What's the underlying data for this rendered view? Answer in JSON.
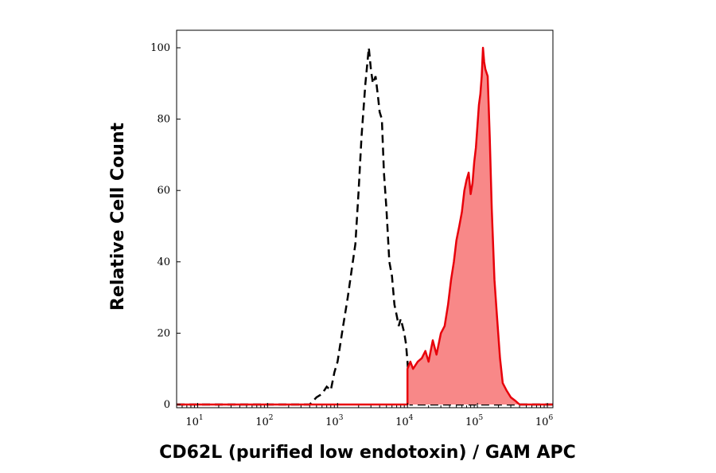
{
  "chart_data": {
    "type": "area",
    "title": "",
    "xlabel": "CD62L (purified low endotoxin) / GAM APC",
    "ylabel": "Relative Cell Count",
    "x_scale": "log",
    "xlim": [
      5,
      1200000
    ],
    "ylim": [
      0,
      100
    ],
    "x_ticks": [
      {
        "base": "10",
        "exp": "1",
        "value": 10
      },
      {
        "base": "10",
        "exp": "2",
        "value": 100
      },
      {
        "base": "10",
        "exp": "3",
        "value": 1000
      },
      {
        "base": "10",
        "exp": "4",
        "value": 10000
      },
      {
        "base": "10",
        "exp": "5",
        "value": 100000
      },
      {
        "base": "10",
        "exp": "6",
        "value": 1000000
      }
    ],
    "y_ticks": [
      0,
      20,
      40,
      60,
      80,
      100
    ],
    "grid": false,
    "colors": {
      "control_line": "#000000",
      "stained_line": "#e8000a",
      "stained_fill": "#f88888"
    },
    "series": [
      {
        "style": "dashed-outline",
        "x": [
          5,
          400,
          500,
          600,
          700,
          800,
          900,
          1000,
          1200,
          1400,
          1600,
          1800,
          2000,
          2200,
          2500,
          2800,
          3000,
          3200,
          3500,
          3800,
          4000,
          4300,
          4600,
          5000,
          5500,
          6000,
          6500,
          7000,
          7500,
          8000,
          8500,
          9000,
          9500,
          10000,
          10500,
          11000,
          1200000
        ],
        "y": [
          0,
          0,
          2,
          3,
          5,
          4,
          9,
          12,
          22,
          30,
          38,
          45,
          60,
          75,
          90,
          100,
          94,
          90,
          92,
          86,
          82,
          80,
          65,
          55,
          40,
          36,
          28,
          25,
          22,
          24,
          22,
          20,
          17,
          12,
          5,
          0,
          0
        ]
      },
      {
        "style": "filled",
        "x": [
          5,
          10000,
          10001,
          11000,
          12000,
          14000,
          16000,
          18000,
          20000,
          23000,
          26000,
          30000,
          34000,
          38000,
          42000,
          46000,
          50000,
          55000,
          60000,
          65000,
          70000,
          75000,
          80000,
          85000,
          90000,
          95000,
          100000,
          105000,
          110000,
          115000,
          120000,
          125000,
          130000,
          140000,
          150000,
          160000,
          175000,
          190000,
          210000,
          230000,
          260000,
          300000,
          350000,
          400000,
          1200000
        ],
        "y": [
          0,
          0,
          10,
          12,
          10,
          12,
          13,
          15,
          12,
          18,
          14,
          20,
          22,
          28,
          35,
          40,
          46,
          50,
          54,
          60,
          63,
          65,
          59,
          62,
          68,
          72,
          78,
          84,
          87,
          92,
          100,
          96,
          94,
          92,
          75,
          55,
          35,
          25,
          13,
          6,
          4,
          2,
          1,
          0,
          0
        ]
      }
    ]
  }
}
